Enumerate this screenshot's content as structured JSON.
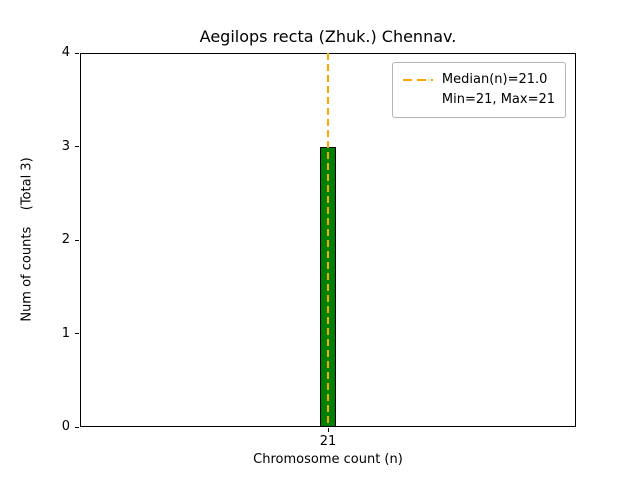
{
  "chart_data": {
    "type": "bar",
    "title": "Aegilops recta (Zhuk.) Chennav.",
    "xlabel": "Chromosome count (n)",
    "ylabel": "Num of counts    (Total 3)",
    "categories": [
      "21"
    ],
    "values": [
      3
    ],
    "ylim": [
      0,
      4
    ],
    "yticks": [
      "0",
      "1",
      "2",
      "3",
      "4"
    ],
    "total_label": "(Total 3)",
    "total": 3,
    "bar_color": "#008000",
    "bar_edge_color": "#000000",
    "median_line_color": "#FFA500",
    "median_value": 21.0,
    "min_value": 21,
    "max_value": 21,
    "grid": false,
    "legend": {
      "position": "upper right",
      "entries": [
        "Median(n)=21.0",
        "Min=21, Max=21"
      ]
    }
  }
}
